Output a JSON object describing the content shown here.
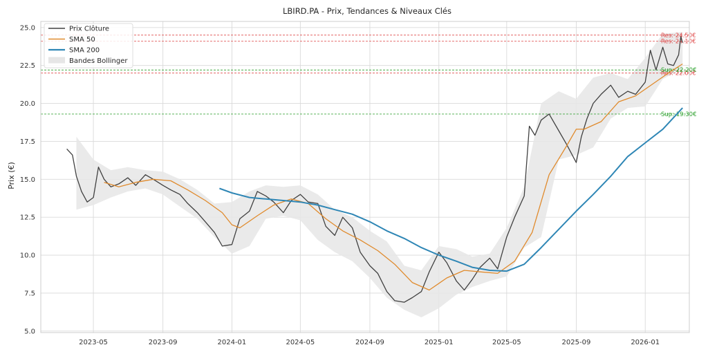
{
  "chart_data": {
    "type": "line",
    "title": "LBIRD.PA - Prix, Tendances & Niveaux Clés",
    "xlabel": "",
    "ylabel": "Prix (€)",
    "ylim": [
      4.9,
      25.4
    ],
    "yticks": [
      5.0,
      7.5,
      10.0,
      12.5,
      15.0,
      17.5,
      20.0,
      22.5,
      25.0
    ],
    "ytick_labels": [
      "5.0",
      "7.5",
      "10.0",
      "12.5",
      "15.0",
      "17.5",
      "20.0",
      "22.5",
      "25.0"
    ],
    "xlim": [
      "2023-01-28",
      "2026-03-20"
    ],
    "xticks": [
      "2023-05-01",
      "2023-09-01",
      "2024-01-01",
      "2024-05-01",
      "2024-09-01",
      "2025-01-01",
      "2025-05-01",
      "2025-09-01",
      "2026-01-01"
    ],
    "xtick_labels": [
      "2023-05",
      "2023-09",
      "2024-01",
      "2024-05",
      "2024-09",
      "2025-01",
      "2025-05",
      "2025-09",
      "2026-01"
    ],
    "grid": true,
    "legend_position": "top-left",
    "colors": {
      "close": "#404040",
      "sma50": "#e08a2c",
      "sma200": "#2e86b5",
      "bollinger": "#e6e6e6",
      "resistance": "#e05050",
      "support": "#2ca02c",
      "grid": "#d9d9d9",
      "frame": "#cccccc"
    },
    "series": [
      {
        "name": "Prix Clôture",
        "x": [
          "2023-03-15",
          "2023-03-25",
          "2023-04-01",
          "2023-04-10",
          "2023-04-20",
          "2023-05-01",
          "2023-05-10",
          "2023-05-20",
          "2023-06-01",
          "2023-06-15",
          "2023-07-01",
          "2023-07-15",
          "2023-08-01",
          "2023-08-15",
          "2023-09-01",
          "2023-09-15",
          "2023-10-01",
          "2023-10-15",
          "2023-11-01",
          "2023-11-15",
          "2023-12-01",
          "2023-12-15",
          "2024-01-01",
          "2024-01-15",
          "2024-02-01",
          "2024-02-15",
          "2024-03-01",
          "2024-03-15",
          "2024-04-01",
          "2024-04-15",
          "2024-05-01",
          "2024-05-15",
          "2024-06-01",
          "2024-06-15",
          "2024-07-01",
          "2024-07-15",
          "2024-08-01",
          "2024-08-15",
          "2024-09-01",
          "2024-09-15",
          "2024-10-01",
          "2024-10-15",
          "2024-11-01",
          "2024-11-15",
          "2024-12-01",
          "2024-12-15",
          "2025-01-01",
          "2025-01-15",
          "2025-02-01",
          "2025-02-15",
          "2025-03-01",
          "2025-03-15",
          "2025-04-01",
          "2025-04-15",
          "2025-05-01",
          "2025-05-15",
          "2025-06-01",
          "2025-06-10",
          "2025-06-20",
          "2025-07-01",
          "2025-07-15",
          "2025-08-01",
          "2025-08-15",
          "2025-09-01",
          "2025-09-10",
          "2025-09-20",
          "2025-10-01",
          "2025-10-15",
          "2025-11-01",
          "2025-11-15",
          "2025-12-01",
          "2025-12-15",
          "2026-01-01",
          "2026-01-10",
          "2026-01-20",
          "2026-02-01",
          "2026-02-10",
          "2026-02-20",
          "2026-03-01",
          "2026-03-05",
          "2026-03-08"
        ],
        "values": [
          17.0,
          16.6,
          15.2,
          14.2,
          13.5,
          13.8,
          15.8,
          15.0,
          14.5,
          14.7,
          15.1,
          14.6,
          15.3,
          15.0,
          14.6,
          14.3,
          14.0,
          13.4,
          12.8,
          12.2,
          11.5,
          10.6,
          10.7,
          12.4,
          12.9,
          14.2,
          13.9,
          13.5,
          12.8,
          13.6,
          14.0,
          13.5,
          13.4,
          11.9,
          11.3,
          12.5,
          11.8,
          10.2,
          9.3,
          8.8,
          7.6,
          7.0,
          6.9,
          7.2,
          7.6,
          8.9,
          10.2,
          9.5,
          8.3,
          7.7,
          8.4,
          9.2,
          9.8,
          9.1,
          11.2,
          12.5,
          13.9,
          18.5,
          17.9,
          18.9,
          19.3,
          18.2,
          17.3,
          16.1,
          17.8,
          19.0,
          20.0,
          20.6,
          21.2,
          20.4,
          20.8,
          20.6,
          21.4,
          23.5,
          22.2,
          23.7,
          22.6,
          22.5,
          23.2,
          24.4,
          24.0
        ]
      },
      {
        "name": "SMA 50",
        "x": [
          "2023-05-20",
          "2023-06-15",
          "2023-07-15",
          "2023-08-15",
          "2023-09-15",
          "2023-10-15",
          "2023-11-15",
          "2023-12-15",
          "2024-01-01",
          "2024-01-15",
          "2024-02-15",
          "2024-03-15",
          "2024-04-15",
          "2024-05-15",
          "2024-06-15",
          "2024-07-15",
          "2024-08-15",
          "2024-09-15",
          "2024-10-15",
          "2024-11-15",
          "2024-12-15",
          "2025-01-15",
          "2025-02-15",
          "2025-03-15",
          "2025-04-15",
          "2025-05-15",
          "2025-06-15",
          "2025-07-15",
          "2025-08-15",
          "2025-09-01",
          "2025-09-15",
          "2025-10-15",
          "2025-11-15",
          "2025-12-15",
          "2026-01-15",
          "2026-02-15",
          "2026-03-08"
        ],
        "values": [
          14.8,
          14.5,
          14.8,
          15.0,
          14.9,
          14.3,
          13.6,
          12.8,
          12.0,
          11.8,
          12.6,
          13.3,
          13.7,
          13.4,
          12.4,
          11.6,
          11.0,
          10.3,
          9.4,
          8.2,
          7.7,
          8.5,
          9.0,
          8.9,
          8.8,
          9.6,
          11.5,
          15.3,
          17.2,
          18.3,
          18.3,
          18.8,
          20.1,
          20.5,
          21.3,
          22.1,
          22.6
        ]
      },
      {
        "name": "SMA 200",
        "x": [
          "2023-12-10",
          "2024-01-01",
          "2024-02-01",
          "2024-03-01",
          "2024-04-01",
          "2024-05-01",
          "2024-06-01",
          "2024-07-01",
          "2024-08-01",
          "2024-09-01",
          "2024-10-01",
          "2024-11-01",
          "2024-12-01",
          "2025-01-01",
          "2025-02-01",
          "2025-03-01",
          "2025-04-01",
          "2025-05-01",
          "2025-06-01",
          "2025-07-01",
          "2025-08-01",
          "2025-09-01",
          "2025-10-01",
          "2025-11-01",
          "2025-12-01",
          "2026-01-01",
          "2026-02-01",
          "2026-03-08"
        ],
        "values": [
          14.4,
          14.1,
          13.8,
          13.7,
          13.6,
          13.5,
          13.3,
          13.0,
          12.7,
          12.2,
          11.6,
          11.1,
          10.5,
          10.0,
          9.6,
          9.2,
          9.0,
          8.95,
          9.4,
          10.5,
          11.7,
          12.9,
          14.0,
          15.2,
          16.5,
          17.4,
          18.3,
          19.7
        ]
      }
    ],
    "bollinger": {
      "name": "Bandes Bollinger",
      "x": [
        "2023-04-01",
        "2023-05-01",
        "2023-06-01",
        "2023-07-01",
        "2023-08-01",
        "2023-09-01",
        "2023-10-01",
        "2023-11-01",
        "2023-12-01",
        "2024-01-01",
        "2024-02-01",
        "2024-03-01",
        "2024-04-01",
        "2024-05-01",
        "2024-06-01",
        "2024-07-01",
        "2024-08-01",
        "2024-09-01",
        "2024-10-01",
        "2024-11-01",
        "2024-12-01",
        "2025-01-01",
        "2025-02-01",
        "2025-03-01",
        "2025-04-01",
        "2025-05-01",
        "2025-06-01",
        "2025-07-01",
        "2025-08-01",
        "2025-09-01",
        "2025-10-01",
        "2025-11-01",
        "2025-12-01",
        "2026-01-01",
        "2026-02-01",
        "2026-03-08"
      ],
      "upper": [
        17.8,
        16.3,
        15.6,
        15.8,
        15.6,
        15.5,
        15.0,
        14.3,
        13.4,
        13.5,
        14.2,
        14.6,
        14.5,
        14.6,
        14.0,
        13.0,
        12.5,
        11.6,
        10.9,
        9.3,
        9.0,
        10.6,
        10.4,
        9.9,
        10.1,
        11.8,
        14.5,
        20.0,
        20.8,
        20.3,
        21.7,
        22.0,
        21.6,
        23.0,
        24.6,
        24.7
      ],
      "lower": [
        13.0,
        13.3,
        13.8,
        14.2,
        14.4,
        14.0,
        13.2,
        12.4,
        11.2,
        10.1,
        10.6,
        12.4,
        12.6,
        12.3,
        11.0,
        10.2,
        9.6,
        8.5,
        7.2,
        6.4,
        5.9,
        6.5,
        7.4,
        7.9,
        8.3,
        8.6,
        10.5,
        11.2,
        16.3,
        16.6,
        17.1,
        19.0,
        19.7,
        19.8,
        21.6,
        22.3
      ]
    },
    "levels": [
      {
        "kind": "resistance",
        "value": 24.5,
        "label": "Res: 24.50€"
      },
      {
        "kind": "resistance",
        "value": 24.1,
        "label": "Res: 24.10€"
      },
      {
        "kind": "resistance",
        "value": 22.0,
        "label": "Res: 22.00€"
      },
      {
        "kind": "support",
        "value": 22.2,
        "label": "Sup: 22.20€"
      },
      {
        "kind": "support",
        "value": 19.3,
        "label": "Sup: 19.30€"
      }
    ]
  }
}
